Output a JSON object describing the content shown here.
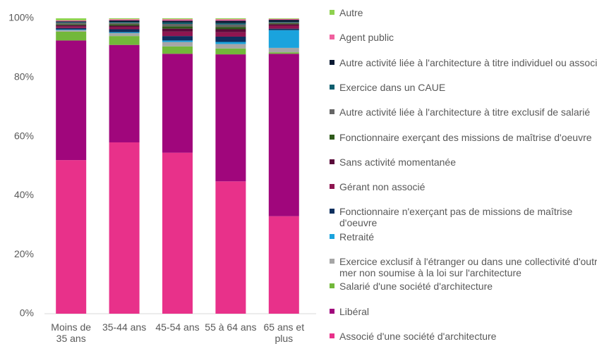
{
  "chart_data": {
    "type": "stacked_bar",
    "categories": [
      "Moins de 35 ans",
      "35-44 ans",
      "45-54 ans",
      "55 à 64 ans",
      "65 ans et plus"
    ],
    "ylim": [
      0,
      100
    ],
    "yticks": [
      {
        "value": 0,
        "label": "0%"
      },
      {
        "value": 20,
        "label": "20%"
      },
      {
        "value": 40,
        "label": "40%"
      },
      {
        "value": 60,
        "label": "60%"
      },
      {
        "value": 80,
        "label": "80%"
      },
      {
        "value": 100,
        "label": "100%"
      }
    ],
    "legend": "right",
    "series": [
      {
        "name": "Associé d'une société d'architecture",
        "color": "#e8318a",
        "values": [
          52,
          58,
          54.5,
          44.8,
          33
        ]
      },
      {
        "name": "Libéral",
        "color": "#a0067c",
        "values": [
          40.5,
          33,
          33.5,
          43,
          55
        ]
      },
      {
        "name": "Salarié d'une société d'architecture",
        "color": "#72b83a",
        "values": [
          3,
          3,
          2.5,
          2,
          0.5
        ]
      },
      {
        "name": "Exercice exclusif à l'étranger ou dans une collectivité d'outre mer non soumise à la loi sur l'architecture",
        "color": "#a6a6a6",
        "values": [
          0.5,
          1,
          1.5,
          1.5,
          1.5
        ]
      },
      {
        "name": "Retraité",
        "color": "#1aa3dd",
        "values": [
          0.2,
          0.3,
          0.5,
          0.7,
          6
        ]
      },
      {
        "name": "Fonctionnaire n'exerçant pas de missions de maîtrise d'oeuvre",
        "color": "#0d2f5e",
        "values": [
          0.5,
          1,
          1.5,
          1.8,
          0.5
        ]
      },
      {
        "name": "Gérant non associé",
        "color": "#8e1550",
        "values": [
          0.5,
          0.7,
          1.5,
          1.5,
          1
        ]
      },
      {
        "name": "Sans activité momentanée",
        "color": "#5a0a3a",
        "values": [
          0.5,
          0.5,
          1,
          1,
          0.5
        ]
      },
      {
        "name": "Fonctionnaire exerçant des missions de maîtrise d'oeuvre",
        "color": "#2f5a1b",
        "values": [
          0.3,
          0.5,
          0.8,
          0.8,
          0.3
        ]
      },
      {
        "name": "Autre activité liée à l'architecture à titre exclusif de salarié",
        "color": "#666666",
        "values": [
          0.5,
          0.5,
          0.8,
          0.8,
          0.3
        ]
      },
      {
        "name": "Exercice dans un CAUE",
        "color": "#0e5e6e",
        "values": [
          0.2,
          0.3,
          0.5,
          0.5,
          0.2
        ]
      },
      {
        "name": "Autre activité liée à l'architecture à titre individuel ou associé",
        "color": "#0a1a33",
        "values": [
          0.3,
          0.5,
          0.6,
          0.8,
          0.7
        ]
      },
      {
        "name": "Agent public",
        "color": "#f0609e",
        "values": [
          0.3,
          0.4,
          0.5,
          0.5,
          0.3
        ]
      },
      {
        "name": "Autre",
        "color": "#8fd14f",
        "values": [
          0.7,
          0.3,
          0.3,
          0.3,
          0.2
        ]
      }
    ]
  }
}
